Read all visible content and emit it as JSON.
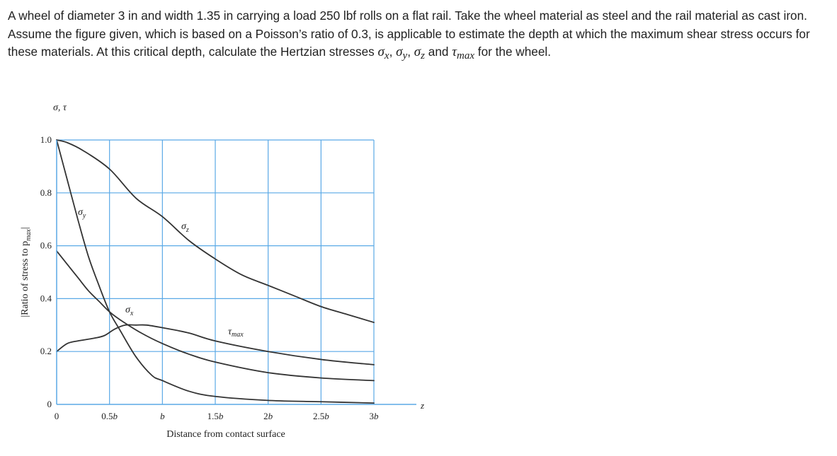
{
  "problem": {
    "text_main": "A wheel of diameter 3 in and width 1.35 in carrying a load 250 lbf rolls on a flat rail. Take the wheel material as steel and the rail material as cast iron. Assume the figure given, which is based on a Poisson’s ratio of 0.3, is applicable to estimate the depth at which the maximum shear stress occurs for these materials. At this critical depth, calculate the Hertzian stresses ",
    "sym_sigma": "σ",
    "sub_x": "x",
    "sub_y": "y",
    "sub_z": "z",
    "sym_tau": "τ",
    "sub_max": "max",
    "sep": ", ",
    "and_text": " and ",
    "tail_text": " for the wheel."
  },
  "chart_data": {
    "type": "line",
    "title": "",
    "ylabel_top": "σ, τ",
    "ylabel": "|Ratio of stress to p",
    "ylabel_sub": "max",
    "ylabel_end": "|",
    "xlabel": "Distance from contact surface",
    "z_axis_label": "z",
    "xlim": [
      0,
      3
    ],
    "ylim": [
      0,
      1
    ],
    "x_ticks": [
      {
        "value": 0,
        "label": "0"
      },
      {
        "value": 0.5,
        "label": "0.5b"
      },
      {
        "value": 1.0,
        "label": "b"
      },
      {
        "value": 1.5,
        "label": "1.5b"
      },
      {
        "value": 2.0,
        "label": "2b"
      },
      {
        "value": 2.5,
        "label": "2.5b"
      },
      {
        "value": 3.0,
        "label": "3b"
      }
    ],
    "y_ticks": [
      {
        "value": 0,
        "label": "0"
      },
      {
        "value": 0.2,
        "label": "0.2"
      },
      {
        "value": 0.4,
        "label": "0.4"
      },
      {
        "value": 0.6,
        "label": "0.6"
      },
      {
        "value": 0.8,
        "label": "0.8"
      },
      {
        "value": 1.0,
        "label": "1.0"
      }
    ],
    "grid": true,
    "series": [
      {
        "name": "σ_z",
        "label": "σ",
        "label_sub": "z",
        "x": [
          0,
          0.1,
          0.25,
          0.5,
          0.75,
          1.0,
          1.25,
          1.5,
          1.75,
          2.0,
          2.25,
          2.5,
          2.75,
          3.0
        ],
        "y": [
          1.0,
          0.99,
          0.96,
          0.89,
          0.78,
          0.71,
          0.62,
          0.55,
          0.49,
          0.45,
          0.41,
          0.37,
          0.34,
          0.31
        ]
      },
      {
        "name": "σ_y",
        "label": "σ",
        "label_sub": "y",
        "x": [
          0,
          0.1,
          0.2,
          0.3,
          0.4,
          0.5,
          0.6,
          0.75,
          0.9,
          1.0,
          1.25,
          1.5,
          2.0,
          2.5,
          3.0
        ],
        "y": [
          1.0,
          0.85,
          0.7,
          0.56,
          0.45,
          0.35,
          0.28,
          0.18,
          0.11,
          0.09,
          0.05,
          0.03,
          0.015,
          0.01,
          0.005
        ]
      },
      {
        "name": "σ_x",
        "label": "σ",
        "label_sub": "x",
        "x": [
          0,
          0.1,
          0.2,
          0.3,
          0.4,
          0.5,
          0.6,
          0.8,
          1.0,
          1.25,
          1.5,
          2.0,
          2.5,
          3.0
        ],
        "y": [
          0.58,
          0.53,
          0.48,
          0.43,
          0.39,
          0.35,
          0.32,
          0.27,
          0.23,
          0.19,
          0.16,
          0.12,
          0.1,
          0.09
        ]
      },
      {
        "name": "τ_max",
        "label": "τ",
        "label_sub": "max",
        "x": [
          0,
          0.1,
          0.2,
          0.35,
          0.45,
          0.55,
          0.65,
          0.75,
          0.85,
          1.0,
          1.25,
          1.5,
          2.0,
          2.5,
          3.0
        ],
        "y": [
          0.2,
          0.23,
          0.24,
          0.25,
          0.26,
          0.285,
          0.3,
          0.3,
          0.3,
          0.29,
          0.27,
          0.24,
          0.2,
          0.17,
          0.15
        ]
      }
    ]
  }
}
